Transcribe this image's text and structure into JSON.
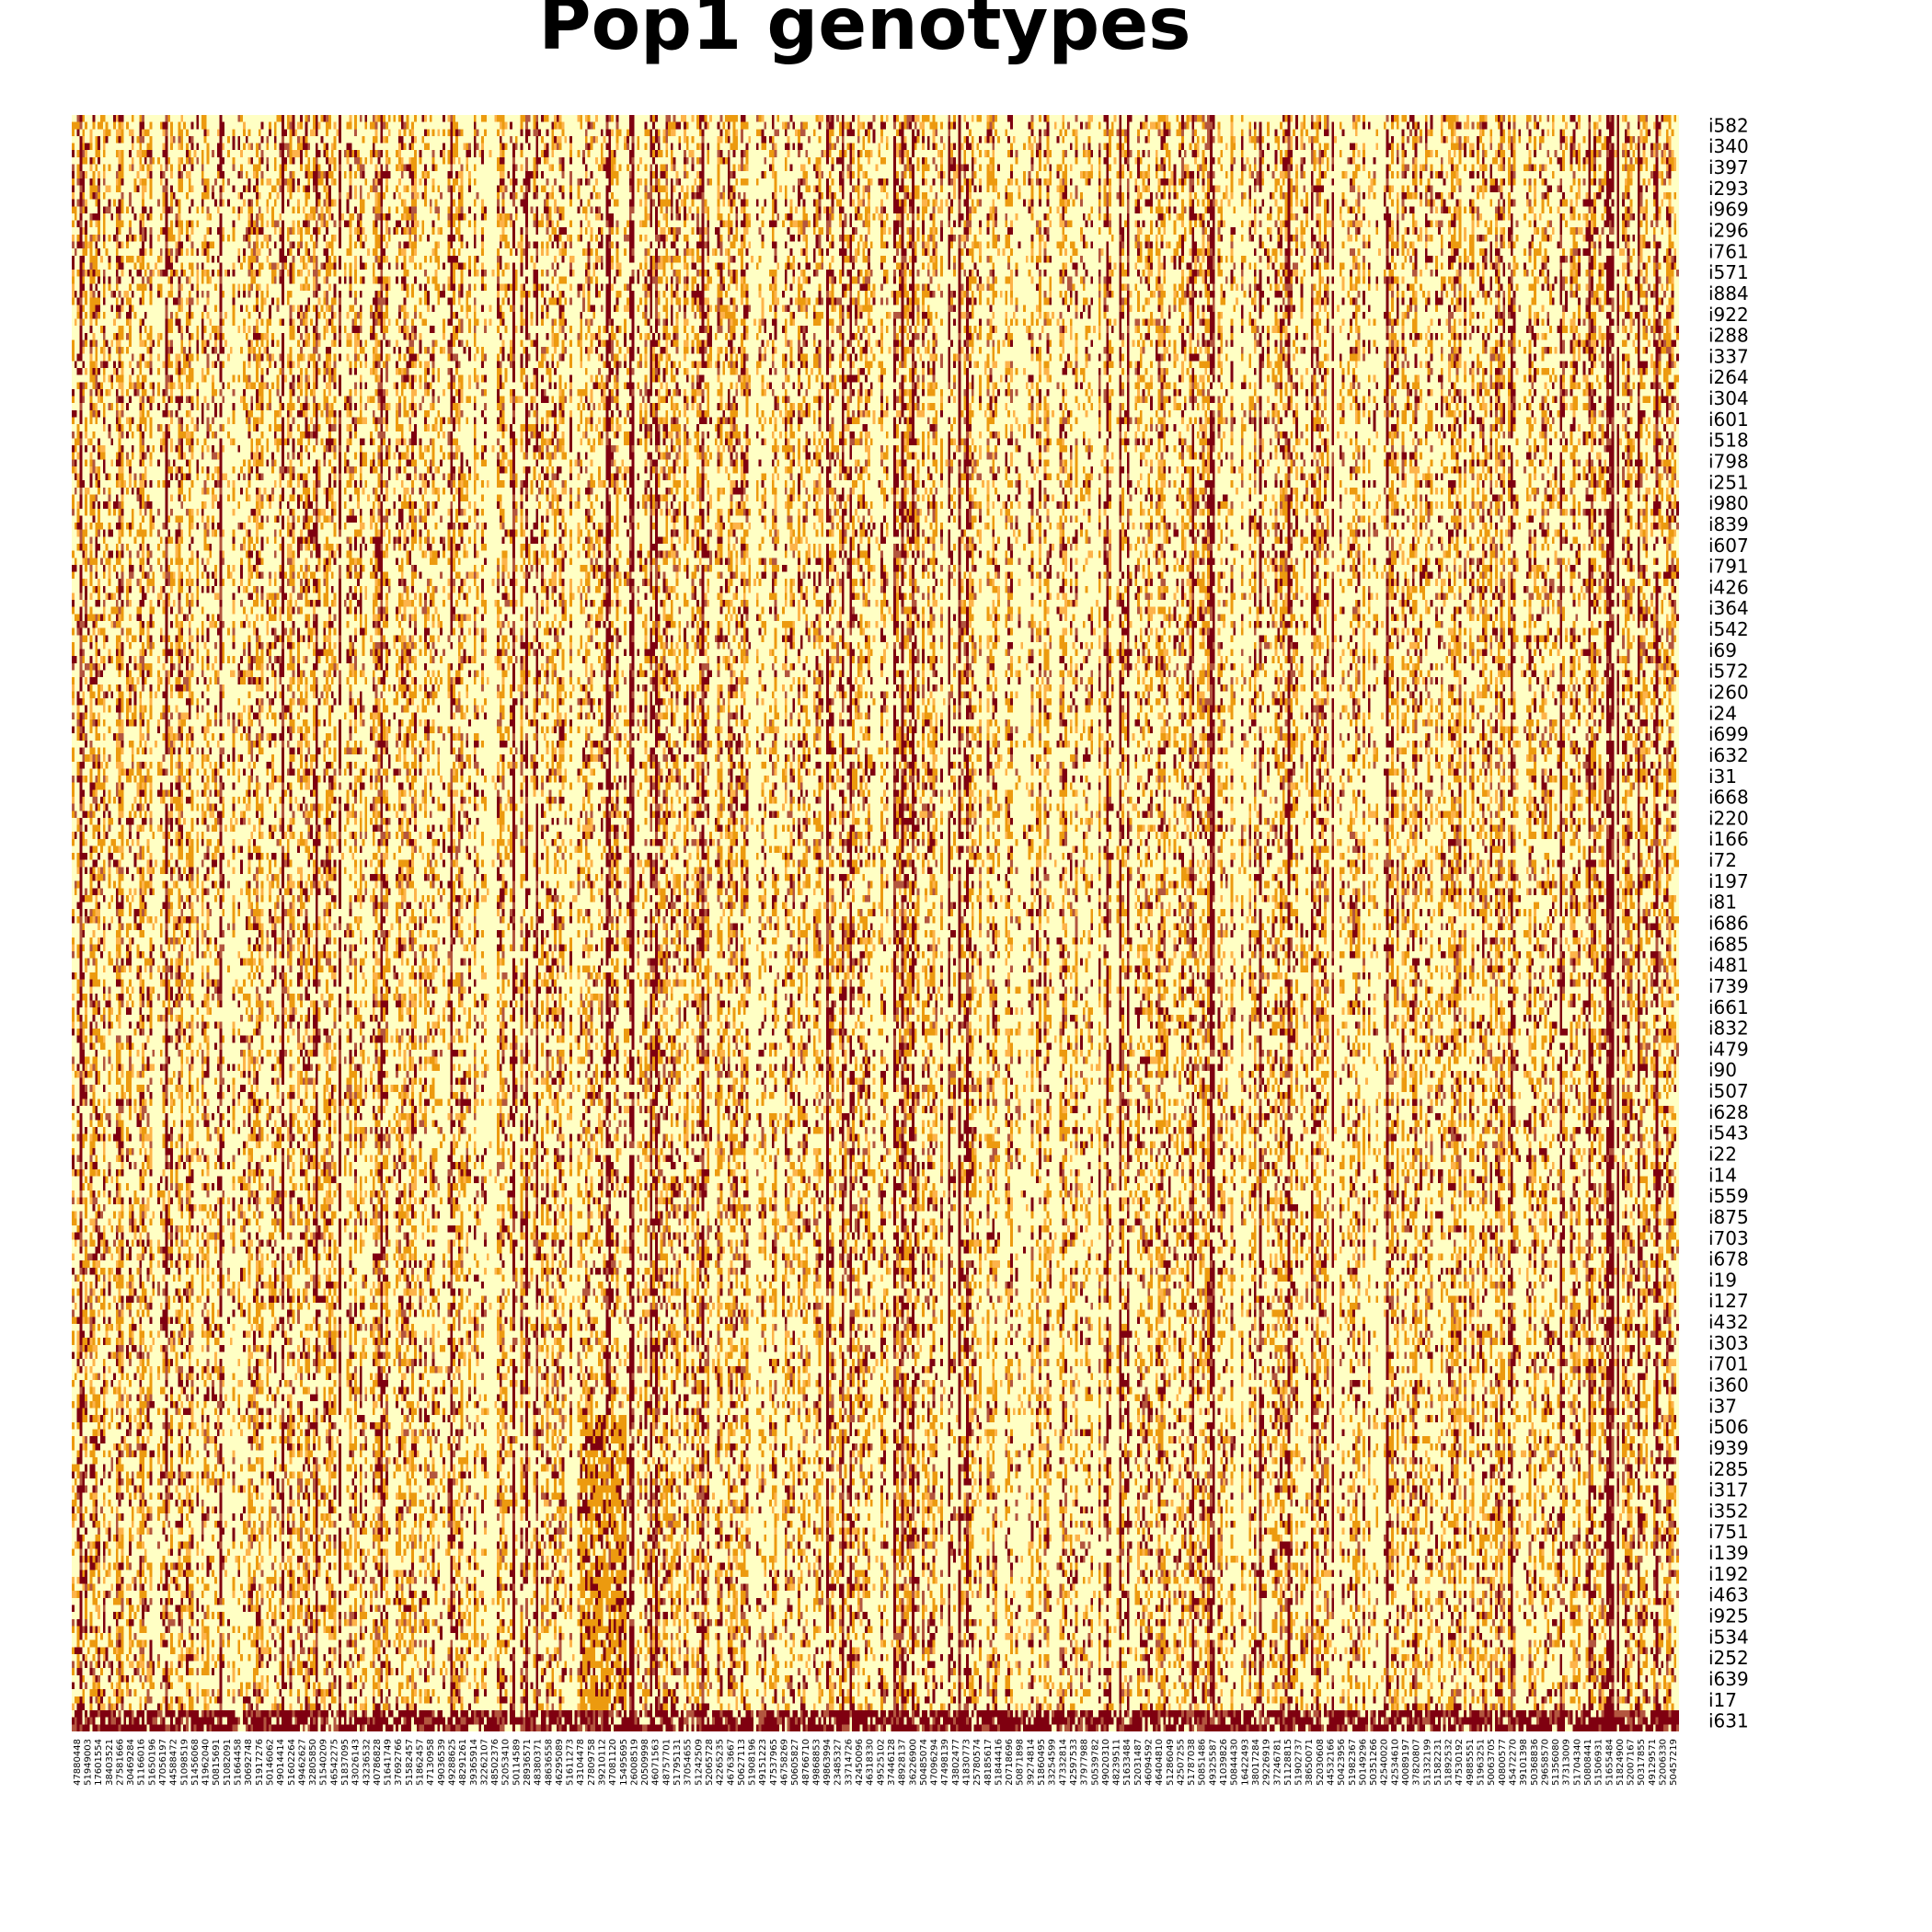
{
  "chart_data": {
    "type": "heatmap",
    "title": "Pop1 genotypes",
    "xlabel": "",
    "ylabel": "",
    "legend": "none",
    "grid": false,
    "palette": [
      "#ffffc4",
      "#fdb34a",
      "#ec9a0f",
      "#b3563f",
      "#7f0010"
    ],
    "palette_note_levels": [
      0,
      1,
      2
    ],
    "row_labels": [
      "i582",
      "i340",
      "i397",
      "i293",
      "i969",
      "i296",
      "i761",
      "i571",
      "i884",
      "i922",
      "i288",
      "i337",
      "i264",
      "i304",
      "i601",
      "i518",
      "i798",
      "i251",
      "i980",
      "i839",
      "i607",
      "i791",
      "i426",
      "i364",
      "i542",
      "i69",
      "i572",
      "i260",
      "i24",
      "i699",
      "i632",
      "i31",
      "i668",
      "i220",
      "i166",
      "i72",
      "i197",
      "i81",
      "i686",
      "i685",
      "i481",
      "i739",
      "i661",
      "i832",
      "i479",
      "i90",
      "i507",
      "i628",
      "i543",
      "i22",
      "i14",
      "i559",
      "i875",
      "i703",
      "i678",
      "i19",
      "i127",
      "i432",
      "i303",
      "i701",
      "i360",
      "i37",
      "i506",
      "i939",
      "i285",
      "i317",
      "i352",
      "i751",
      "i139",
      "i192",
      "i463",
      "i925",
      "i534",
      "i252",
      "i639",
      "i17",
      "i631"
    ],
    "col_labels": [
      "47880448",
      "51949003",
      "17601554",
      "38403521",
      "27581666",
      "30469284",
      "51166016",
      "51650196",
      "47056197",
      "44588472",
      "51098519",
      "51456068",
      "41962040",
      "50815691",
      "51082091",
      "51664458",
      "30692748",
      "51917276",
      "50146062",
      "49014414",
      "51602264",
      "49462627",
      "32805850",
      "51540209",
      "46542275",
      "51837095",
      "43026143",
      "43236532",
      "40786828",
      "51641749",
      "37692766",
      "51582457",
      "51862457",
      "47130958",
      "49036539",
      "49288625",
      "48291261",
      "39365914",
      "32262107",
      "48502376",
      "52053410",
      "50114589",
      "28936571",
      "48380371",
      "48636558",
      "46295089",
      "51611273",
      "43104478",
      "27809758",
      "39210112",
      "47081120",
      "15495695",
      "26008519",
      "20509998",
      "46071563",
      "48757701",
      "51795131",
      "37054655",
      "51242509",
      "52065728",
      "42265235",
      "46763667",
      "50627113",
      "51908196",
      "49151223",
      "47537965",
      "46758269",
      "50605827",
      "48766710",
      "49868853",
      "49863994",
      "23485327",
      "33714726",
      "42450096",
      "46318330",
      "49525102",
      "37446128",
      "48928137",
      "36226900",
      "50485074",
      "47096294",
      "47498139",
      "43802477",
      "41830773",
      "25780574",
      "48185617",
      "51844416",
      "20718696",
      "50871898",
      "39274814",
      "51860495",
      "33254599",
      "47332814",
      "42597533",
      "37977988",
      "50539782",
      "49020310",
      "48239511",
      "51633484",
      "52031487",
      "46094592",
      "46404810",
      "51286049",
      "42507255",
      "51787038",
      "50851486",
      "49325587",
      "41039826",
      "50844430",
      "16422493",
      "38017284",
      "29226919",
      "37246781",
      "51128815",
      "51902737",
      "38650071",
      "52030608",
      "44532166",
      "50423956",
      "51982367",
      "50149296",
      "50351266",
      "42540020",
      "42534610",
      "40089197",
      "37820807",
      "51332199",
      "51582231",
      "51892532",
      "47530192",
      "49885551",
      "51963251",
      "50063705",
      "40800577",
      "45472270",
      "39101398",
      "50368836",
      "29658570",
      "51356080",
      "37313009",
      "51704340",
      "50808441",
      "51506931",
      "51655484",
      "51824900",
      "52007167",
      "50317855",
      "49129571",
      "52006330",
      "50457219"
    ]
  }
}
